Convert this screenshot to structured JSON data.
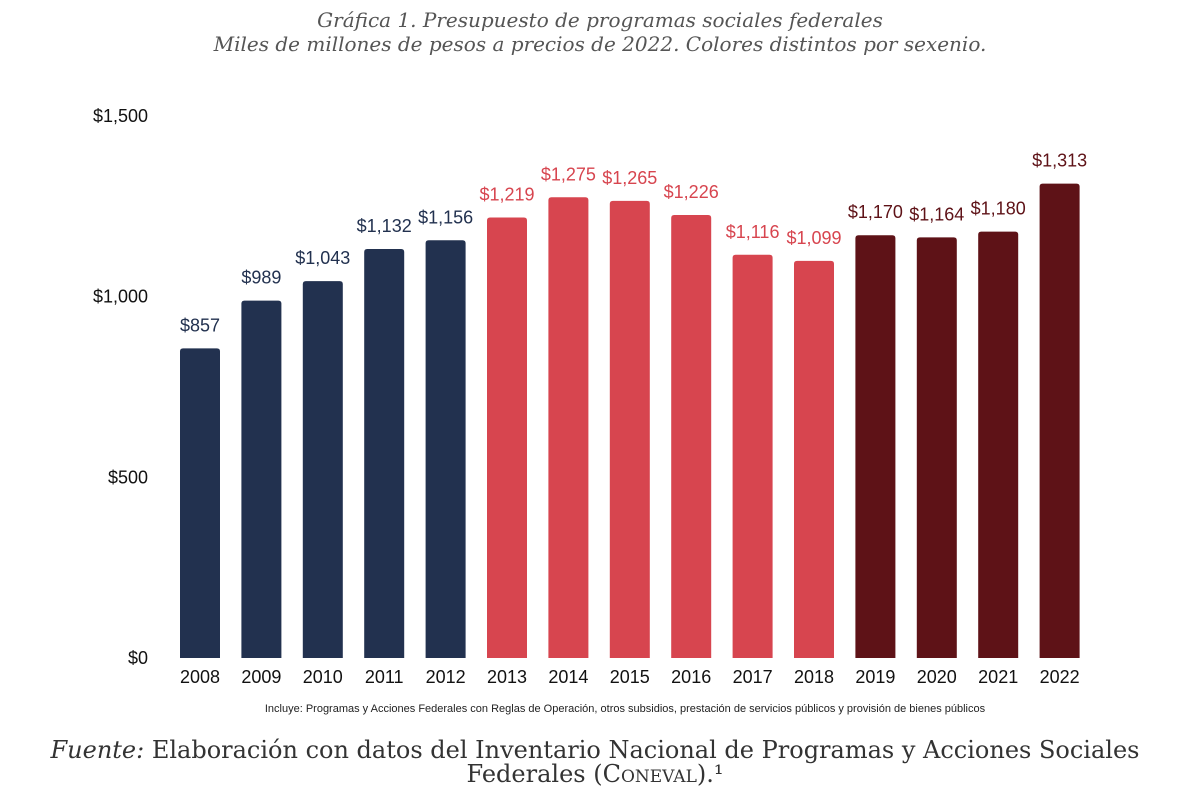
{
  "title": "Gráfica 1. Presupuesto de programas sociales federales",
  "subtitle": "Miles de millones de pesos a precios de 2022. Colores distintos por sexenio.",
  "note": "Incluye:  Programas y Acciones Federales con Reglas de Operación, otros subsidios, prestación de servicios públicos y provisión de bienes públicos",
  "source": {
    "lead": "Fuente:",
    "line1": " Elaboración con datos del Inventario Nacional de Programas y Acciones Sociales",
    "line2": "Federales (",
    "acronym": "Coneval",
    "line2_end": ").¹"
  },
  "colors": {
    "period1": "#22314f",
    "period2": "#d7454f",
    "period3": "#5e1217",
    "label_period1": "#22314f",
    "label_period2": "#d7454f",
    "label_period3": "#5e1217"
  },
  "chart_data": {
    "type": "bar",
    "categories": [
      "2008",
      "2009",
      "2010",
      "2011",
      "2012",
      "2013",
      "2014",
      "2015",
      "2016",
      "2017",
      "2018",
      "2019",
      "2020",
      "2021",
      "2022"
    ],
    "values": [
      857,
      989,
      1043,
      1132,
      1156,
      1219,
      1275,
      1265,
      1226,
      1116,
      1099,
      1170,
      1164,
      1180,
      1313
    ],
    "value_labels": [
      "$857",
      "$989",
      "$1,043",
      "$1,132",
      "$1,156",
      "$1,219",
      "$1,275",
      "$1,265",
      "$1,226",
      "$1,116",
      "$1,099",
      "$1,170",
      "$1,164",
      "$1,180",
      "$1,313"
    ],
    "bar_color_groups": [
      "period1",
      "period1",
      "period1",
      "period1",
      "period1",
      "period2",
      "period2",
      "period2",
      "period2",
      "period2",
      "period2",
      "period3",
      "period3",
      "period3",
      "period3"
    ],
    "ylim": [
      0,
      1500
    ],
    "yticks": [
      0,
      500,
      1000,
      1500
    ],
    "ytick_labels": [
      "$0",
      "$500",
      "$1,000",
      "$1,500"
    ],
    "grid": false,
    "legend": "none"
  }
}
